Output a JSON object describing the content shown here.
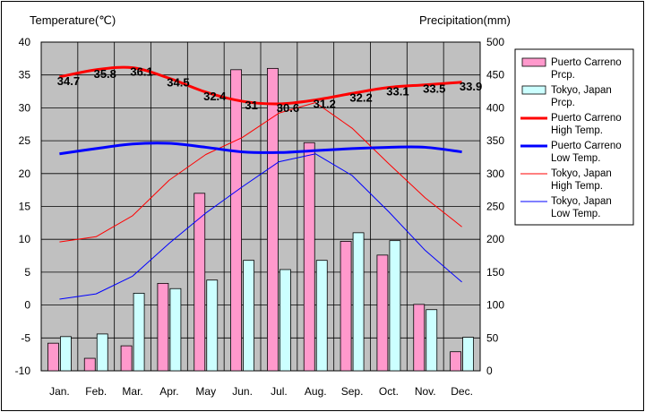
{
  "chart_data": {
    "type": "bar+line",
    "left_axis_title": "Temperature(℃)",
    "right_axis_title": "Precipitation(mm)",
    "categories": [
      "Jan.",
      "Feb.",
      "Mar.",
      "Apr.",
      "May",
      "Jun.",
      "Jul.",
      "Aug.",
      "Sep.",
      "Oct.",
      "Nov.",
      "Dec."
    ],
    "temperature_ylim": [
      -10,
      40
    ],
    "temperature_ticks": [
      40,
      35,
      30,
      25,
      20,
      15,
      10,
      5,
      0,
      -5,
      -10
    ],
    "precipitation_ylim": [
      0,
      500
    ],
    "precipitation_ticks": [
      500,
      450,
      400,
      350,
      300,
      250,
      200,
      150,
      100,
      50,
      0
    ],
    "grid": true,
    "plot_background": "#c0c0c0",
    "legend_position": "right",
    "bar_series": [
      {
        "name": "Puerto Carreno\nPrcp.",
        "color": "#ff99cc",
        "values": [
          42,
          19,
          38,
          133,
          270,
          458,
          460,
          347,
          197,
          176,
          101,
          29
        ]
      },
      {
        "name": "Tokyo, Japan\nPrcp.",
        "color": "#ccffff",
        "values": [
          52,
          56,
          118,
          125,
          138,
          168,
          154,
          168,
          210,
          198,
          93,
          51
        ]
      }
    ],
    "line_series": [
      {
        "name": "Puerto Carreno\nHigh Temp.",
        "color": "#ff0000",
        "width": 3,
        "values": [
          34.7,
          35.8,
          36.1,
          34.5,
          32.4,
          31.0,
          30.6,
          31.2,
          32.2,
          33.1,
          33.5,
          33.9
        ],
        "labels": [
          "34.7",
          "35.8",
          "36.1",
          "34.5",
          "32.4",
          "31",
          "30.6",
          "31.2",
          "32.2",
          "33.1",
          "33.5",
          "33.9"
        ]
      },
      {
        "name": "Puerto Carreno\nLow Temp.",
        "color": "#0000ff",
        "width": 3,
        "values": [
          23.0,
          23.8,
          24.5,
          24.6,
          24.0,
          23.3,
          23.2,
          23.5,
          23.8,
          24.0,
          24.0,
          23.3
        ]
      },
      {
        "name": "Tokyo, Japan\nHigh Temp.",
        "color": "#ff0000",
        "width": 1,
        "values": [
          9.6,
          10.4,
          13.6,
          19.0,
          22.9,
          25.5,
          29.2,
          30.8,
          26.9,
          21.5,
          16.3,
          11.9
        ]
      },
      {
        "name": "Tokyo, Japan\nLow Temp.",
        "color": "#0000ff",
        "width": 1,
        "values": [
          0.9,
          1.7,
          4.4,
          9.4,
          14.0,
          18.0,
          21.8,
          23.0,
          19.7,
          14.2,
          8.3,
          3.5
        ]
      }
    ]
  }
}
